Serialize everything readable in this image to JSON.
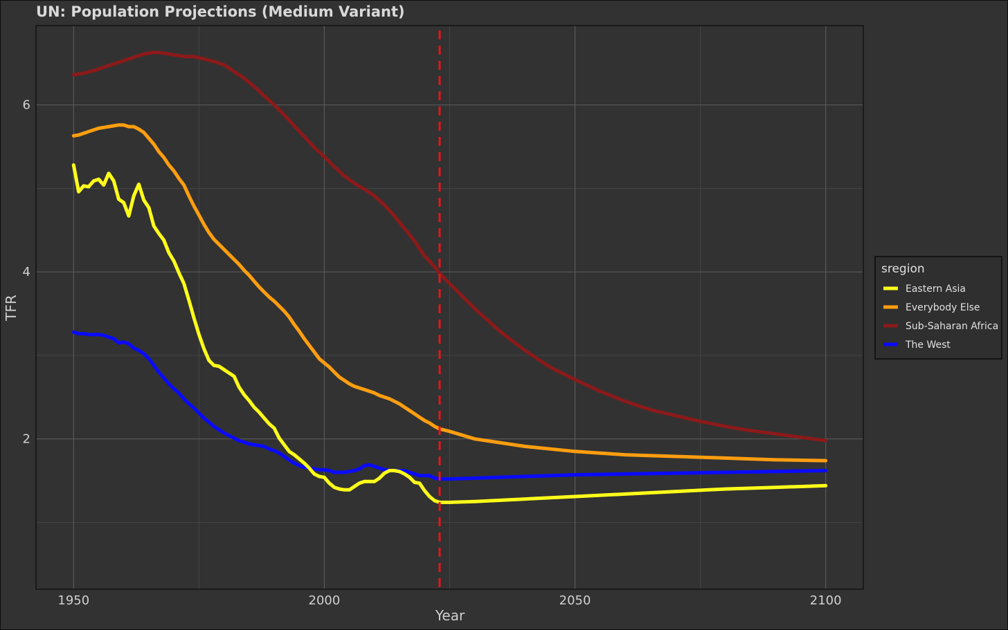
{
  "chart_data": {
    "type": "line",
    "title": "UN: Population Projections (Medium Variant)",
    "xlabel": "Year",
    "ylabel": "TFR",
    "xlim": [
      1942.5,
      2107.5
    ],
    "ylim": [
      0.2,
      6.95
    ],
    "x_ticks": [
      1950,
      2000,
      2050,
      2100
    ],
    "x_tick_labels": [
      "1950",
      "2000",
      "2050",
      "2100"
    ],
    "x_minor_ticks": [
      1975,
      2025,
      2075
    ],
    "y_ticks": [
      2,
      4,
      6
    ],
    "y_tick_labels": [
      "2",
      "4",
      "6"
    ],
    "y_minor_ticks": [
      1,
      3,
      5
    ],
    "grid": true,
    "reference_line": {
      "x": 2023,
      "style": "dashed",
      "color": "#e8141b"
    },
    "legend": {
      "title": "sregion",
      "position": "right"
    },
    "series": [
      {
        "name": "Eastern Asia",
        "color": "#ffff1a",
        "points": [
          [
            1950,
            5.28
          ],
          [
            1951,
            4.96
          ],
          [
            1952,
            5.03
          ],
          [
            1953,
            5.02
          ],
          [
            1954,
            5.09
          ],
          [
            1955,
            5.11
          ],
          [
            1956,
            5.04
          ],
          [
            1957,
            5.18
          ],
          [
            1958,
            5.09
          ],
          [
            1959,
            4.87
          ],
          [
            1960,
            4.83
          ],
          [
            1961,
            4.67
          ],
          [
            1962,
            4.91
          ],
          [
            1963,
            5.05
          ],
          [
            1964,
            4.86
          ],
          [
            1965,
            4.77
          ],
          [
            1966,
            4.55
          ],
          [
            1967,
            4.46
          ],
          [
            1968,
            4.38
          ],
          [
            1969,
            4.23
          ],
          [
            1970,
            4.13
          ],
          [
            1971,
            3.99
          ],
          [
            1972,
            3.86
          ],
          [
            1973,
            3.66
          ],
          [
            1974,
            3.45
          ],
          [
            1975,
            3.25
          ],
          [
            1976,
            3.08
          ],
          [
            1977,
            2.94
          ],
          [
            1978,
            2.88
          ],
          [
            1979,
            2.87
          ],
          [
            1980,
            2.83
          ],
          [
            1981,
            2.79
          ],
          [
            1982,
            2.75
          ],
          [
            1983,
            2.62
          ],
          [
            1984,
            2.53
          ],
          [
            1985,
            2.46
          ],
          [
            1986,
            2.38
          ],
          [
            1987,
            2.32
          ],
          [
            1988,
            2.25
          ],
          [
            1989,
            2.18
          ],
          [
            1990,
            2.13
          ],
          [
            1991,
            2.01
          ],
          [
            1992,
            1.93
          ],
          [
            1993,
            1.85
          ],
          [
            1994,
            1.81
          ],
          [
            1995,
            1.76
          ],
          [
            1996,
            1.71
          ],
          [
            1997,
            1.65
          ],
          [
            1998,
            1.58
          ],
          [
            1999,
            1.55
          ],
          [
            2000,
            1.54
          ],
          [
            2001,
            1.47
          ],
          [
            2002,
            1.42
          ],
          [
            2003,
            1.4
          ],
          [
            2004,
            1.39
          ],
          [
            2005,
            1.39
          ],
          [
            2006,
            1.43
          ],
          [
            2007,
            1.47
          ],
          [
            2008,
            1.49
          ],
          [
            2009,
            1.49
          ],
          [
            2010,
            1.49
          ],
          [
            2011,
            1.53
          ],
          [
            2012,
            1.59
          ],
          [
            2013,
            1.62
          ],
          [
            2014,
            1.62
          ],
          [
            2015,
            1.61
          ],
          [
            2016,
            1.58
          ],
          [
            2017,
            1.54
          ],
          [
            2018,
            1.48
          ],
          [
            2019,
            1.47
          ],
          [
            2020,
            1.38
          ],
          [
            2021,
            1.31
          ],
          [
            2022,
            1.26
          ],
          [
            2023,
            1.24
          ],
          [
            2025,
            1.24
          ],
          [
            2030,
            1.25
          ],
          [
            2040,
            1.28
          ],
          [
            2050,
            1.31
          ],
          [
            2060,
            1.34
          ],
          [
            2070,
            1.37
          ],
          [
            2080,
            1.4
          ],
          [
            2090,
            1.42
          ],
          [
            2100,
            1.44
          ]
        ]
      },
      {
        "name": "Everybody Else",
        "color": "#ff9e10",
        "points": [
          [
            1950,
            5.63
          ],
          [
            1951,
            5.64
          ],
          [
            1952,
            5.66
          ],
          [
            1953,
            5.68
          ],
          [
            1954,
            5.7
          ],
          [
            1955,
            5.72
          ],
          [
            1956,
            5.73
          ],
          [
            1957,
            5.74
          ],
          [
            1958,
            5.75
          ],
          [
            1959,
            5.76
          ],
          [
            1960,
            5.76
          ],
          [
            1961,
            5.74
          ],
          [
            1962,
            5.74
          ],
          [
            1963,
            5.71
          ],
          [
            1964,
            5.67
          ],
          [
            1965,
            5.6
          ],
          [
            1966,
            5.53
          ],
          [
            1967,
            5.44
          ],
          [
            1968,
            5.37
          ],
          [
            1969,
            5.28
          ],
          [
            1970,
            5.21
          ],
          [
            1971,
            5.12
          ],
          [
            1972,
            5.04
          ],
          [
            1973,
            4.91
          ],
          [
            1974,
            4.79
          ],
          [
            1975,
            4.68
          ],
          [
            1976,
            4.57
          ],
          [
            1977,
            4.47
          ],
          [
            1978,
            4.39
          ],
          [
            1979,
            4.33
          ],
          [
            1980,
            4.27
          ],
          [
            1981,
            4.21
          ],
          [
            1982,
            4.15
          ],
          [
            1983,
            4.09
          ],
          [
            1984,
            4.02
          ],
          [
            1985,
            3.96
          ],
          [
            1986,
            3.89
          ],
          [
            1987,
            3.82
          ],
          [
            1988,
            3.76
          ],
          [
            1989,
            3.7
          ],
          [
            1990,
            3.65
          ],
          [
            1991,
            3.59
          ],
          [
            1992,
            3.53
          ],
          [
            1993,
            3.46
          ],
          [
            1994,
            3.37
          ],
          [
            1995,
            3.29
          ],
          [
            1996,
            3.2
          ],
          [
            1997,
            3.12
          ],
          [
            1998,
            3.04
          ],
          [
            1999,
            2.96
          ],
          [
            2000,
            2.91
          ],
          [
            2001,
            2.86
          ],
          [
            2002,
            2.8
          ],
          [
            2003,
            2.74
          ],
          [
            2004,
            2.7
          ],
          [
            2005,
            2.66
          ],
          [
            2006,
            2.63
          ],
          [
            2007,
            2.61
          ],
          [
            2008,
            2.59
          ],
          [
            2009,
            2.57
          ],
          [
            2010,
            2.55
          ],
          [
            2011,
            2.52
          ],
          [
            2012,
            2.5
          ],
          [
            2013,
            2.48
          ],
          [
            2014,
            2.45
          ],
          [
            2015,
            2.42
          ],
          [
            2016,
            2.38
          ],
          [
            2017,
            2.34
          ],
          [
            2018,
            2.3
          ],
          [
            2019,
            2.26
          ],
          [
            2020,
            2.22
          ],
          [
            2021,
            2.19
          ],
          [
            2022,
            2.15
          ],
          [
            2023,
            2.12
          ],
          [
            2025,
            2.09
          ],
          [
            2030,
            2.0
          ],
          [
            2040,
            1.91
          ],
          [
            2050,
            1.85
          ],
          [
            2060,
            1.81
          ],
          [
            2070,
            1.79
          ],
          [
            2080,
            1.77
          ],
          [
            2090,
            1.75
          ],
          [
            2100,
            1.74
          ]
        ]
      },
      {
        "name": "Sub-Saharan Africa",
        "color": "#8b1a1a",
        "points": [
          [
            1950,
            6.36
          ],
          [
            1952,
            6.38
          ],
          [
            1954,
            6.41
          ],
          [
            1956,
            6.45
          ],
          [
            1958,
            6.49
          ],
          [
            1960,
            6.53
          ],
          [
            1962,
            6.57
          ],
          [
            1964,
            6.61
          ],
          [
            1966,
            6.63
          ],
          [
            1968,
            6.62
          ],
          [
            1970,
            6.6
          ],
          [
            1972,
            6.58
          ],
          [
            1974,
            6.58
          ],
          [
            1976,
            6.55
          ],
          [
            1978,
            6.52
          ],
          [
            1980,
            6.48
          ],
          [
            1982,
            6.4
          ],
          [
            1984,
            6.32
          ],
          [
            1986,
            6.22
          ],
          [
            1988,
            6.11
          ],
          [
            1990,
            6.0
          ],
          [
            1992,
            5.88
          ],
          [
            1994,
            5.75
          ],
          [
            1996,
            5.62
          ],
          [
            1998,
            5.49
          ],
          [
            2000,
            5.38
          ],
          [
            2002,
            5.26
          ],
          [
            2004,
            5.15
          ],
          [
            2006,
            5.06
          ],
          [
            2008,
            4.99
          ],
          [
            2010,
            4.91
          ],
          [
            2012,
            4.8
          ],
          [
            2014,
            4.67
          ],
          [
            2016,
            4.52
          ],
          [
            2018,
            4.37
          ],
          [
            2020,
            4.19
          ],
          [
            2022,
            4.06
          ],
          [
            2023,
            3.98
          ],
          [
            2025,
            3.86
          ],
          [
            2030,
            3.56
          ],
          [
            2035,
            3.29
          ],
          [
            2040,
            3.06
          ],
          [
            2045,
            2.86
          ],
          [
            2050,
            2.71
          ],
          [
            2055,
            2.57
          ],
          [
            2060,
            2.45
          ],
          [
            2065,
            2.35
          ],
          [
            2070,
            2.28
          ],
          [
            2075,
            2.21
          ],
          [
            2080,
            2.15
          ],
          [
            2085,
            2.1
          ],
          [
            2090,
            2.06
          ],
          [
            2095,
            2.02
          ],
          [
            2100,
            1.98
          ]
        ]
      },
      {
        "name": "The West",
        "color": "#0a0aff",
        "points": [
          [
            1950,
            3.28
          ],
          [
            1951,
            3.26
          ],
          [
            1952,
            3.26
          ],
          [
            1953,
            3.25
          ],
          [
            1954,
            3.25
          ],
          [
            1955,
            3.25
          ],
          [
            1956,
            3.24
          ],
          [
            1957,
            3.22
          ],
          [
            1958,
            3.2
          ],
          [
            1959,
            3.15
          ],
          [
            1960,
            3.16
          ],
          [
            1961,
            3.14
          ],
          [
            1962,
            3.09
          ],
          [
            1963,
            3.06
          ],
          [
            1964,
            3.02
          ],
          [
            1965,
            2.96
          ],
          [
            1966,
            2.88
          ],
          [
            1967,
            2.8
          ],
          [
            1968,
            2.73
          ],
          [
            1969,
            2.66
          ],
          [
            1970,
            2.6
          ],
          [
            1971,
            2.55
          ],
          [
            1972,
            2.48
          ],
          [
            1973,
            2.42
          ],
          [
            1974,
            2.37
          ],
          [
            1975,
            2.31
          ],
          [
            1976,
            2.25
          ],
          [
            1977,
            2.2
          ],
          [
            1978,
            2.15
          ],
          [
            1979,
            2.11
          ],
          [
            1980,
            2.07
          ],
          [
            1981,
            2.04
          ],
          [
            1982,
            2.01
          ],
          [
            1983,
            1.98
          ],
          [
            1984,
            1.96
          ],
          [
            1985,
            1.94
          ],
          [
            1986,
            1.93
          ],
          [
            1987,
            1.92
          ],
          [
            1988,
            1.91
          ],
          [
            1989,
            1.88
          ],
          [
            1990,
            1.86
          ],
          [
            1991,
            1.83
          ],
          [
            1992,
            1.79
          ],
          [
            1993,
            1.75
          ],
          [
            1994,
            1.71
          ],
          [
            1995,
            1.68
          ],
          [
            1996,
            1.66
          ],
          [
            1997,
            1.65
          ],
          [
            1998,
            1.64
          ],
          [
            1999,
            1.63
          ],
          [
            2000,
            1.63
          ],
          [
            2001,
            1.62
          ],
          [
            2002,
            1.6
          ],
          [
            2003,
            1.6
          ],
          [
            2004,
            1.6
          ],
          [
            2005,
            1.61
          ],
          [
            2006,
            1.62
          ],
          [
            2007,
            1.64
          ],
          [
            2008,
            1.68
          ],
          [
            2009,
            1.69
          ],
          [
            2010,
            1.67
          ],
          [
            2011,
            1.65
          ],
          [
            2012,
            1.63
          ],
          [
            2013,
            1.62
          ],
          [
            2014,
            1.62
          ],
          [
            2015,
            1.62
          ],
          [
            2016,
            1.62
          ],
          [
            2017,
            1.6
          ],
          [
            2018,
            1.58
          ],
          [
            2019,
            1.56
          ],
          [
            2020,
            1.56
          ],
          [
            2021,
            1.56
          ],
          [
            2022,
            1.53
          ],
          [
            2023,
            1.52
          ],
          [
            2025,
            1.52
          ],
          [
            2030,
            1.53
          ],
          [
            2040,
            1.55
          ],
          [
            2050,
            1.57
          ],
          [
            2060,
            1.58
          ],
          [
            2070,
            1.59
          ],
          [
            2080,
            1.6
          ],
          [
            2090,
            1.61
          ],
          [
            2100,
            1.62
          ]
        ]
      }
    ]
  }
}
